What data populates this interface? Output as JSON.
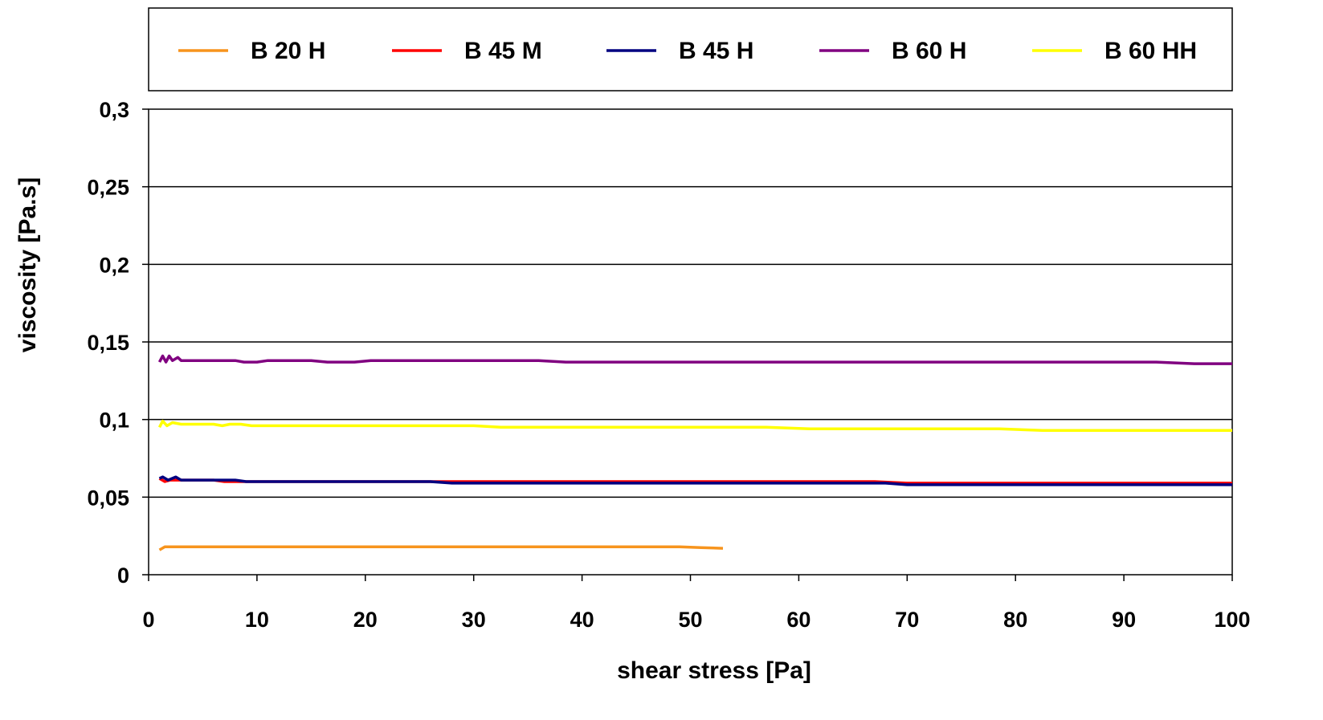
{
  "chart_data": {
    "type": "line",
    "title": "",
    "xlabel": "shear stress [Pa]",
    "ylabel": "viscosity [Pa.s]",
    "xlim": [
      0,
      100
    ],
    "ylim": [
      0,
      0.3
    ],
    "x_ticks": [
      "0",
      "10",
      "20",
      "30",
      "40",
      "50",
      "60",
      "70",
      "80",
      "90",
      "100"
    ],
    "y_ticks": [
      "0",
      "0,05",
      "0,1",
      "0,15",
      "0,2",
      "0,25",
      "0,3"
    ],
    "grid": "horizontal",
    "legend_position": "top",
    "series": [
      {
        "name": "B 20 H",
        "color": "#f7941d",
        "points": [
          [
            1.0,
            0.016
          ],
          [
            1.5,
            0.018
          ],
          [
            5,
            0.018
          ],
          [
            10,
            0.018
          ],
          [
            20,
            0.018
          ],
          [
            30,
            0.018
          ],
          [
            40,
            0.018
          ],
          [
            49,
            0.018
          ],
          [
            51,
            0.0175
          ],
          [
            53,
            0.017
          ]
        ]
      },
      {
        "name": "B 45 M",
        "color": "#ff0000",
        "points": [
          [
            1.0,
            0.062
          ],
          [
            1.5,
            0.06
          ],
          [
            2.0,
            0.061
          ],
          [
            3,
            0.061
          ],
          [
            6,
            0.061
          ],
          [
            7,
            0.06
          ],
          [
            10,
            0.06
          ],
          [
            20,
            0.06
          ],
          [
            30,
            0.06
          ],
          [
            40,
            0.06
          ],
          [
            50,
            0.06
          ],
          [
            60,
            0.06
          ],
          [
            67,
            0.06
          ],
          [
            70,
            0.059
          ],
          [
            80,
            0.059
          ],
          [
            90,
            0.059
          ],
          [
            100,
            0.059
          ]
        ]
      },
      {
        "name": "B 45 H",
        "color": "#000080",
        "points": [
          [
            1.0,
            0.062
          ],
          [
            1.3,
            0.063
          ],
          [
            1.8,
            0.061
          ],
          [
            2.5,
            0.063
          ],
          [
            3,
            0.061
          ],
          [
            8,
            0.061
          ],
          [
            9,
            0.06
          ],
          [
            20,
            0.06
          ],
          [
            26,
            0.06
          ],
          [
            28,
            0.059
          ],
          [
            40,
            0.059
          ],
          [
            50,
            0.059
          ],
          [
            60,
            0.059
          ],
          [
            68,
            0.059
          ],
          [
            70,
            0.058
          ],
          [
            80,
            0.058
          ],
          [
            90,
            0.058
          ],
          [
            100,
            0.058
          ]
        ]
      },
      {
        "name": "B 60 H",
        "color": "#800080",
        "points": [
          [
            1.0,
            0.137
          ],
          [
            1.3,
            0.141
          ],
          [
            1.6,
            0.137
          ],
          [
            1.9,
            0.141
          ],
          [
            2.2,
            0.138
          ],
          [
            2.7,
            0.14
          ],
          [
            3,
            0.138
          ],
          [
            8,
            0.138
          ],
          [
            8.8,
            0.137
          ],
          [
            10,
            0.137
          ],
          [
            11,
            0.138
          ],
          [
            15,
            0.138
          ],
          [
            16.5,
            0.137
          ],
          [
            19,
            0.137
          ],
          [
            20.5,
            0.138
          ],
          [
            36,
            0.138
          ],
          [
            38.5,
            0.137
          ],
          [
            60,
            0.137
          ],
          [
            80,
            0.137
          ],
          [
            93,
            0.137
          ],
          [
            96.5,
            0.136
          ],
          [
            100,
            0.136
          ]
        ]
      },
      {
        "name": "B 60 HH",
        "color": "#ffff00",
        "points": [
          [
            1.0,
            0.095
          ],
          [
            1.3,
            0.099
          ],
          [
            1.7,
            0.096
          ],
          [
            2.2,
            0.098
          ],
          [
            3,
            0.097
          ],
          [
            6,
            0.097
          ],
          [
            6.8,
            0.096
          ],
          [
            7.5,
            0.097
          ],
          [
            8.5,
            0.097
          ],
          [
            9.5,
            0.096
          ],
          [
            20,
            0.096
          ],
          [
            30,
            0.096
          ],
          [
            32.5,
            0.095
          ],
          [
            40,
            0.095
          ],
          [
            50,
            0.095
          ],
          [
            57,
            0.095
          ],
          [
            61,
            0.094
          ],
          [
            70,
            0.094
          ],
          [
            78.5,
            0.094
          ],
          [
            82.5,
            0.093
          ],
          [
            90,
            0.093
          ],
          [
            100,
            0.093
          ]
        ]
      }
    ]
  }
}
